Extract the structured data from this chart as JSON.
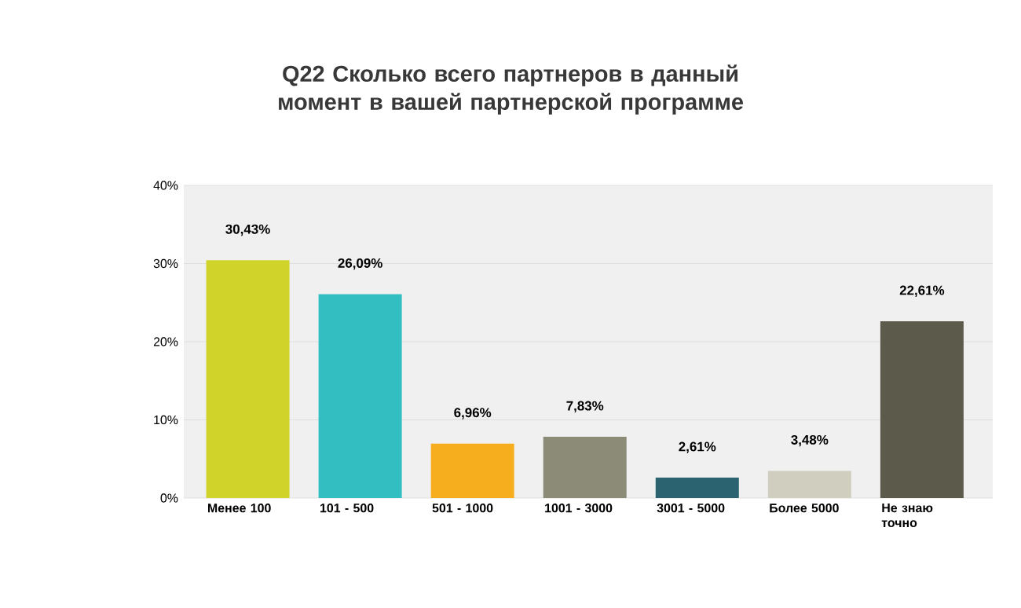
{
  "chart_data": {
    "type": "bar",
    "title": "Q22 Сколько всего партнеров в данный момент в вашей партнерской программе",
    "categories": [
      "Менее 100",
      "101 - 500",
      "501 - 1000",
      "1001 - 3000",
      "3001 - 5000",
      "Более 5000",
      "Не знаю точно"
    ],
    "values": [
      30.43,
      26.09,
      6.96,
      7.83,
      2.61,
      3.48,
      22.61
    ],
    "value_labels": [
      "30,43%",
      "26,09%",
      "6,96%",
      "7,83%",
      "2,61%",
      "3,48%",
      "22,61%"
    ],
    "colors": [
      "#d0d42a",
      "#33bfc2",
      "#f6ae1f",
      "#8b8b78",
      "#2b6370",
      "#d0cfbf",
      "#5c5a4a"
    ],
    "ylim": [
      0,
      40
    ],
    "yticks": [
      {
        "value": 0,
        "label": "0%"
      },
      {
        "value": 10,
        "label": "10%"
      },
      {
        "value": 20,
        "label": "20%"
      },
      {
        "value": 30,
        "label": "30%"
      },
      {
        "value": 40,
        "label": "40%"
      }
    ],
    "grid": "y"
  }
}
